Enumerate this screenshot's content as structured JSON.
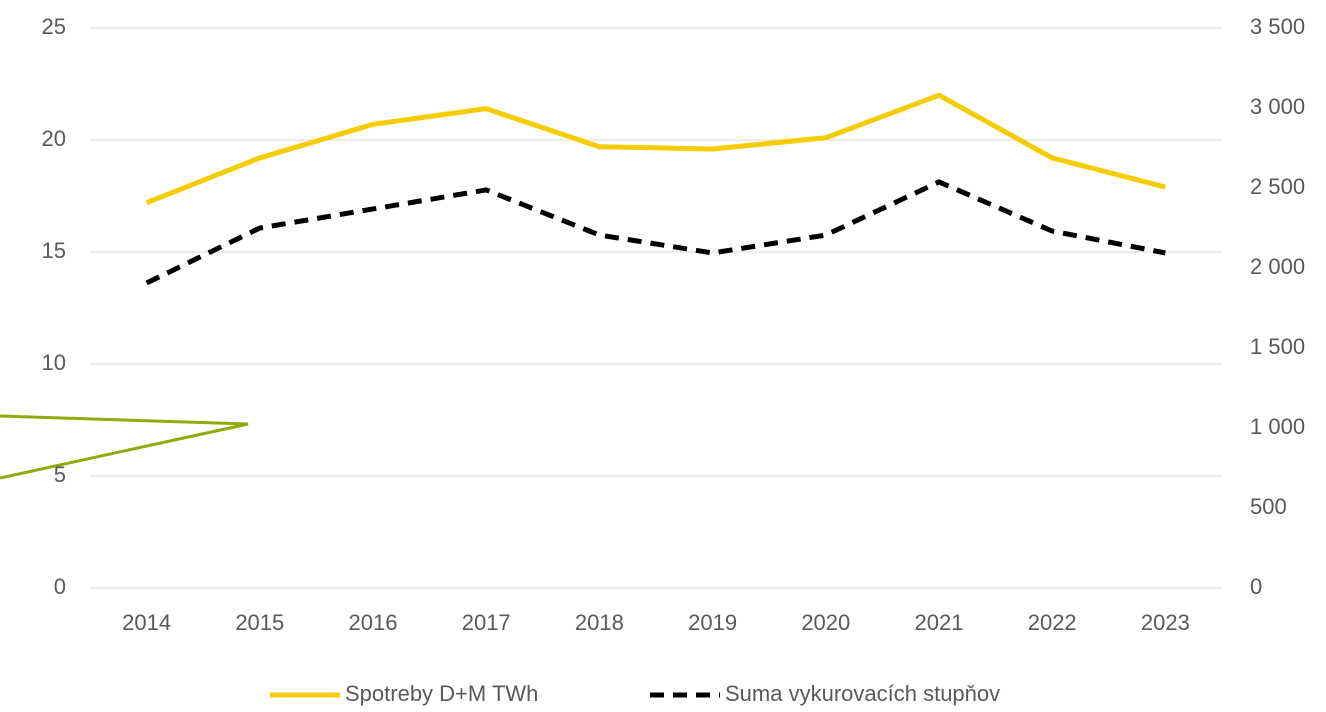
{
  "chart_data": {
    "type": "line",
    "categories": [
      "2014",
      "2015",
      "2016",
      "2017",
      "2018",
      "2019",
      "2020",
      "2021",
      "2022",
      "2023"
    ],
    "series": [
      {
        "name": "Spotreby D+M TWh",
        "color": "#f5cc00",
        "dash": false,
        "values": [
          17.2,
          19.2,
          20.7,
          21.4,
          19.7,
          19.6,
          20.1,
          22.0,
          19.2,
          17.9
        ]
      },
      {
        "name": "Suma vykurovacích stupňov",
        "color": "#000000",
        "dash": true,
        "axis": "y2",
        "values": [
          1906,
          2250,
          2369,
          2488,
          2206,
          2094,
          2206,
          2538,
          2231,
          2094
        ]
      }
    ],
    "ylim": [
      0,
      25
    ],
    "yticks": [
      0,
      5,
      10,
      15,
      20,
      25
    ],
    "y2lim": [
      0,
      3500
    ],
    "y2ticks": [
      0,
      500,
      {
        "value": 1000,
        "label": "1 000"
      },
      {
        "value": 1500,
        "label": "1 500"
      },
      {
        "value": 2000,
        "label": "2 000"
      },
      {
        "value": 2500,
        "label": "2 500"
      },
      {
        "value": 3000,
        "label": "3 000"
      },
      {
        "value": 3500,
        "label": "3 500"
      }
    ],
    "grid": true,
    "legend": "bottom"
  }
}
